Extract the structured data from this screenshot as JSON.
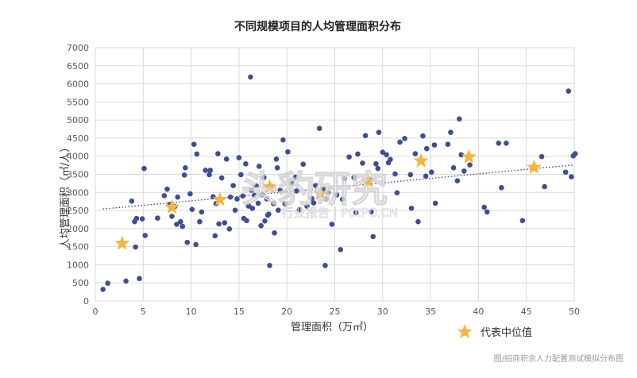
{
  "chart_data": {
    "type": "scatter",
    "title": "不同规模项目的人均管理面积分布",
    "xlabel": "管理面积（万㎡）",
    "ylabel": "人均管理面积（㎡/人）",
    "xlim": [
      0,
      50
    ],
    "ylim": [
      0,
      7000
    ],
    "x_ticks": [
      "0",
      "5",
      "10",
      "15",
      "20",
      "25",
      "30",
      "35",
      "40",
      "45",
      "50"
    ],
    "y_ticks": [
      "0",
      "500",
      "1000",
      "1500",
      "2000",
      "2500",
      "3000",
      "3500",
      "4000",
      "4500",
      "5000",
      "5500",
      "6000",
      "6500",
      "7000"
    ],
    "grid": true,
    "legend": {
      "position": "bottom-right",
      "label": "代表中位值"
    },
    "colors": {
      "points": "#3d4e94",
      "median": "#f4b63e",
      "trend": "#3b4f8f",
      "grid": "#d9d9d9"
    },
    "trendline": {
      "style": "dotted",
      "x": [
        0.8,
        50
      ],
      "y": [
        2540,
        3760
      ]
    },
    "series": [
      {
        "kind": "points",
        "x": [
          0.8,
          1.3,
          3.2,
          4.6,
          3.8,
          4.1,
          4.3,
          4.9,
          4.2,
          5.2,
          5.1,
          6.5,
          7.2,
          7.5,
          7.8,
          8.0,
          8.3,
          8.5,
          8.6,
          8.9,
          9.1,
          9.4,
          9.3,
          9.6,
          9.9,
          10.1,
          10.3,
          10.6,
          10.9,
          11.1,
          11.5,
          11.9,
          12.3,
          12.6,
          12.8,
          12.9,
          13.2,
          13.5,
          13.7,
          14.1,
          14.4,
          14.6,
          14.8,
          15.0,
          15.2,
          15.4,
          15.5,
          15.7,
          15.8,
          16.0,
          16.2,
          16.4,
          16.3,
          16.6,
          16.8,
          17.0,
          17.1,
          17.3,
          17.4,
          17.6,
          17.7,
          17.9,
          18.1,
          18.2,
          18.4,
          18.6,
          18.7,
          18.9,
          19.1,
          19.3,
          19.6,
          19.8,
          20.1,
          20.5,
          20.9,
          21.3,
          21.7,
          22.1,
          22.6,
          23.0,
          23.4,
          23.8,
          24.1,
          24.3,
          24.7,
          25.2,
          25.6,
          26.0,
          26.5,
          27.0,
          27.4,
          27.9,
          28.2,
          28.6,
          29.0,
          29.3,
          29.6,
          30.0,
          30.4,
          30.8,
          31.3,
          31.8,
          32.3,
          32.9,
          33.4,
          33.7,
          34.2,
          34.6,
          35.1,
          35.4,
          36.8,
          37.1,
          37.4,
          37.8,
          38.2,
          38.5,
          39.1,
          40.6,
          40.9,
          42.1,
          42.4,
          42.9,
          44.6,
          46.6,
          46.9,
          49.1,
          49.4,
          49.7,
          49.9,
          50.1,
          24.0,
          27.2,
          29.5,
          31.5,
          33.0,
          35.5,
          38.0,
          21.0,
          18.0,
          16.0,
          14.0,
          12.0,
          10.5,
          19.0,
          22.8,
          25.8,
          28.8,
          30.6,
          34.5,
          12.5
        ],
        "y": [
          320,
          490,
          550,
          620,
          2760,
          2190,
          2280,
          2270,
          1490,
          1810,
          3660,
          2290,
          2910,
          3090,
          2670,
          2340,
          2610,
          2120,
          2870,
          2190,
          2060,
          3680,
          3480,
          1620,
          2960,
          2530,
          4330,
          4060,
          2190,
          2460,
          3610,
          3490,
          2880,
          2690,
          4070,
          2130,
          3400,
          2160,
          3920,
          2870,
          3190,
          2510,
          2820,
          3960,
          3490,
          2900,
          2280,
          3790,
          2220,
          2640,
          6190,
          2560,
          3060,
          2920,
          3180,
          2700,
          3720,
          2080,
          2930,
          3410,
          2210,
          2820,
          2400,
          980,
          3160,
          2690,
          1880,
          3920,
          2510,
          3060,
          4450,
          2690,
          4120,
          3260,
          3420,
          2520,
          3780,
          2620,
          2830,
          3190,
          4770,
          3110,
          2820,
          3000,
          2120,
          2930,
          1420,
          3380,
          3980,
          3410,
          4060,
          3810,
          4570,
          3370,
          1780,
          3790,
          4660,
          4110,
          4040,
          3910,
          3510,
          4390,
          4490,
          3490,
          4070,
          2190,
          4560,
          4210,
          3560,
          4310,
          4330,
          4660,
          3680,
          3320,
          4040,
          3590,
          3760,
          2590,
          2460,
          4360,
          3130,
          4360,
          2220,
          3990,
          3160,
          3560,
          5800,
          3430,
          4010,
          4070,
          980,
          2440,
          3660,
          2990,
          2560,
          2700,
          5030,
          3040,
          2370,
          2620,
          1990,
          3610,
          1560,
          3680,
          2710,
          2810,
          2460,
          3820,
          3450,
          1800
        ]
      },
      {
        "kind": "median",
        "name": "代表中位值",
        "x": [
          2.8,
          8.0,
          13.0,
          18.2,
          23.5,
          28.5,
          34.0,
          39.0,
          45.8
        ],
        "y": [
          1590,
          2590,
          2800,
          3150,
          2970,
          3310,
          3870,
          3980,
          3690
        ]
      }
    ]
  },
  "watermark": {
    "main": "头豹研究",
    "sub": "行业报告 | POIPO.CN"
  },
  "caption": "图/招商积余人力配置测试模拟分布图"
}
